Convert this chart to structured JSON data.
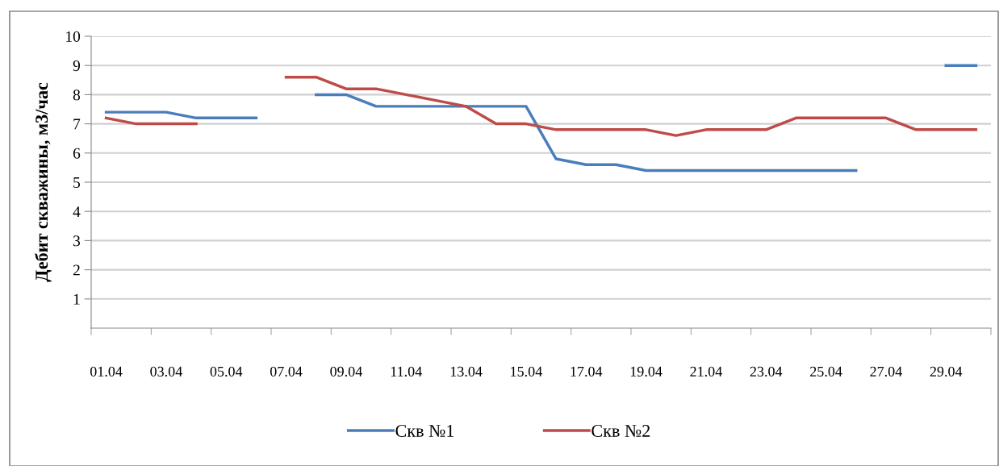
{
  "chart_data": {
    "type": "line",
    "ylabel": "Дебит скважины, м3/час",
    "categories": [
      "01.04",
      null,
      "03.04",
      null,
      "05.04",
      null,
      "07.04",
      null,
      "09.04",
      null,
      "11.04",
      null,
      "13.04",
      null,
      "15.04",
      null,
      "17.04",
      null,
      "19.04",
      null,
      "21.04",
      null,
      "23.04",
      null,
      "25.04",
      null,
      "27.04",
      null,
      "29.04",
      null
    ],
    "series": [
      {
        "name": "Скв №1",
        "color": "#4a7ebb",
        "values": [
          7.4,
          7.4,
          7.4,
          7.2,
          7.2,
          7.2,
          null,
          8.0,
          8.0,
          7.6,
          7.6,
          7.6,
          7.6,
          7.6,
          7.6,
          5.8,
          5.6,
          5.6,
          5.4,
          5.4,
          5.4,
          5.4,
          5.4,
          5.4,
          5.4,
          5.4,
          null,
          null,
          9.0,
          9.0
        ]
      },
      {
        "name": "Скв №2",
        "color": "#be4b48",
        "values": [
          7.2,
          7.0,
          7.0,
          7.0,
          null,
          null,
          8.6,
          8.6,
          8.2,
          8.2,
          8.0,
          7.8,
          7.6,
          7.0,
          7.0,
          6.8,
          6.8,
          6.8,
          6.8,
          6.6,
          6.8,
          6.8,
          6.8,
          7.2,
          7.2,
          7.2,
          7.2,
          6.8,
          6.8,
          6.8
        ]
      }
    ],
    "ylim": [
      0,
      10
    ],
    "yticks": [
      1,
      2,
      3,
      4,
      5,
      6,
      7,
      8,
      9,
      10
    ],
    "grid": "y",
    "legend": "bottom",
    "marker": "none",
    "line_style": "solid"
  }
}
